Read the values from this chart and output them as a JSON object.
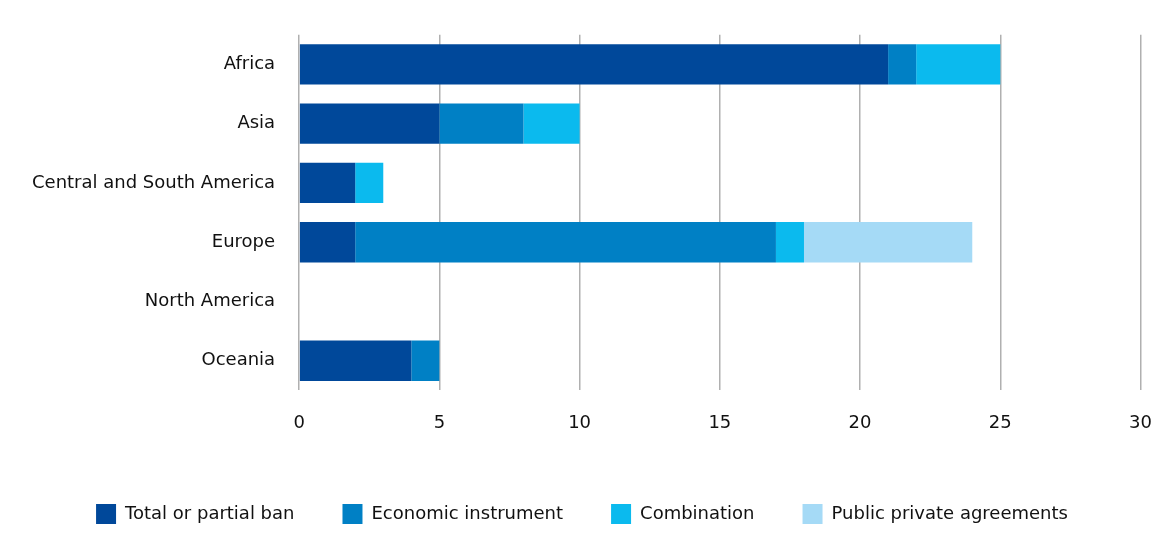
{
  "chart_data": {
    "type": "bar",
    "orientation": "horizontal",
    "stacked": true,
    "categories": [
      "Africa",
      "Asia",
      "Central and South America",
      "Europe",
      "North America",
      "Oceania"
    ],
    "series": [
      {
        "name": "Total or partial ban",
        "color": "#00489a",
        "values": [
          21,
          5,
          2,
          2,
          0,
          4
        ]
      },
      {
        "name": "Economic instrument",
        "color": "#0080c5",
        "values": [
          1,
          3,
          0,
          15,
          0,
          1
        ]
      },
      {
        "name": "Combination",
        "color": "#0bbaee",
        "values": [
          3,
          2,
          1,
          1,
          0,
          0
        ]
      },
      {
        "name": "Public private agreements",
        "color": "#a5daf6",
        "values": [
          0,
          0,
          0,
          6,
          0,
          0
        ]
      }
    ],
    "xlim": [
      0,
      30
    ],
    "xticks": [
      0,
      5,
      10,
      15,
      20,
      25,
      30
    ],
    "grid": "x",
    "legend": "bottom"
  }
}
